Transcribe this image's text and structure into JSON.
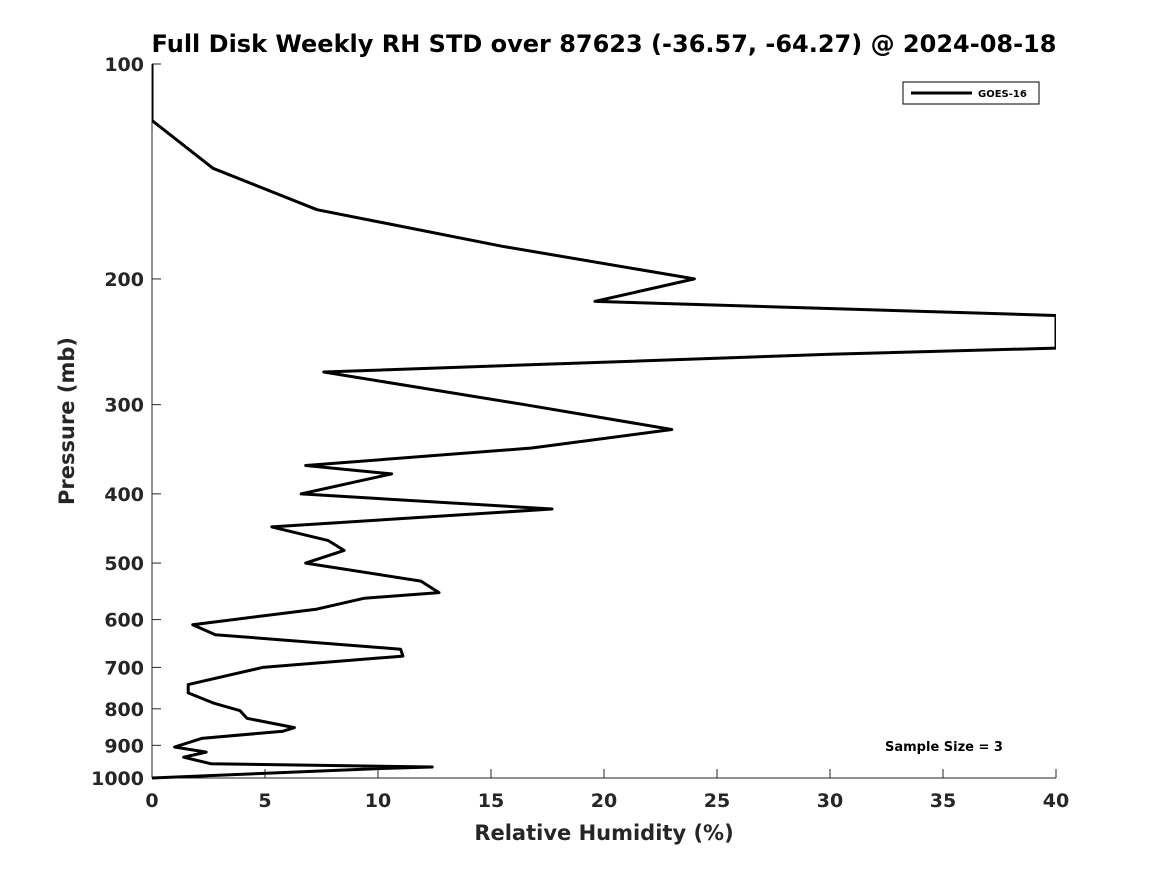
{
  "chart_data": {
    "type": "line",
    "title": "Full Disk Weekly RH STD over 87623 (-36.57, -64.27) @ 2024-08-18",
    "xlabel": "Relative Humidity (%)",
    "ylabel": "Pressure (mb)",
    "xlim": [
      0,
      40
    ],
    "ylim": [
      100,
      1000
    ],
    "y_scale": "log",
    "y_reversed": true,
    "grid": false,
    "legend_position": "top-right",
    "x_ticks": [
      0,
      5,
      10,
      15,
      20,
      25,
      30,
      35,
      40
    ],
    "y_ticks": [
      100,
      200,
      300,
      400,
      500,
      600,
      700,
      800,
      900,
      1000
    ],
    "annotation": "Sample Size = 3",
    "series": [
      {
        "name": "GOES-16",
        "color": "#000000",
        "points": [
          [
            0.0,
            100
          ],
          [
            0.0,
            120
          ],
          [
            2.7,
            140
          ],
          [
            7.3,
            160
          ],
          [
            15.5,
            180
          ],
          [
            24.0,
            200
          ],
          [
            19.6,
            215
          ],
          [
            40.0,
            225
          ],
          [
            40.0,
            250
          ],
          [
            30.0,
            255
          ],
          [
            7.6,
            270
          ],
          [
            16.5,
            300
          ],
          [
            23.0,
            325
          ],
          [
            16.8,
            345
          ],
          [
            6.8,
            365
          ],
          [
            10.6,
            375
          ],
          [
            6.6,
            400
          ],
          [
            17.7,
            420
          ],
          [
            5.3,
            445
          ],
          [
            7.8,
            465
          ],
          [
            8.5,
            480
          ],
          [
            6.8,
            500
          ],
          [
            11.9,
            530
          ],
          [
            12.7,
            550
          ],
          [
            9.4,
            560
          ],
          [
            7.3,
            580
          ],
          [
            1.8,
            610
          ],
          [
            2.8,
            630
          ],
          [
            11.0,
            660
          ],
          [
            11.1,
            675
          ],
          [
            4.9,
            700
          ],
          [
            1.6,
            740
          ],
          [
            1.6,
            760
          ],
          [
            2.7,
            785
          ],
          [
            3.9,
            805
          ],
          [
            4.2,
            825
          ],
          [
            6.3,
            850
          ],
          [
            5.8,
            860
          ],
          [
            2.2,
            880
          ],
          [
            1.0,
            905
          ],
          [
            2.4,
            920
          ],
          [
            1.4,
            935
          ],
          [
            2.6,
            955
          ],
          [
            12.4,
            965
          ],
          [
            10.0,
            970
          ],
          [
            0.0,
            1000
          ]
        ]
      }
    ]
  }
}
